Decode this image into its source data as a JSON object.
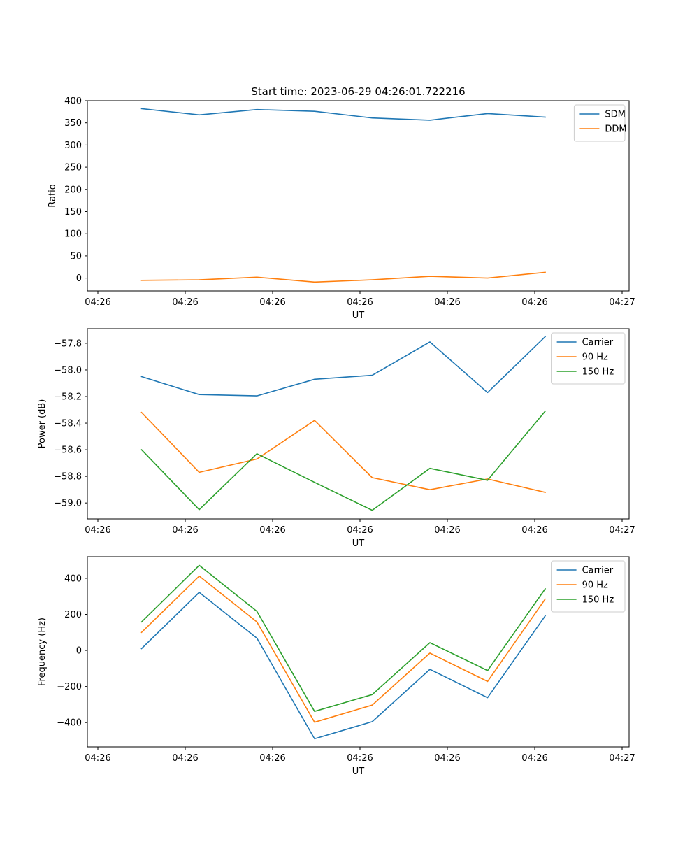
{
  "figure": {
    "title": "Start time: 2023-06-29 04:26:01.722216"
  },
  "chart_data": [
    {
      "type": "line",
      "title": "Start time: 2023-06-29 04:26:01.722216",
      "xlabel": "UT",
      "ylabel": "Ratio",
      "x_tick_labels": [
        "04:26",
        "04:26",
        "04:26",
        "04:26",
        "04:26",
        "04:26",
        "04:27"
      ],
      "x_ticks": [
        0,
        10,
        20,
        30,
        40,
        50,
        60
      ],
      "xlim": [
        -1.2,
        60.8
      ],
      "x": [
        5,
        11.6,
        18.2,
        24.8,
        31.4,
        38,
        44.6,
        51.2
      ],
      "yticks": [
        0,
        50,
        100,
        150,
        200,
        250,
        300,
        350,
        400
      ],
      "ytick_labels": [
        "0",
        "50",
        "100",
        "150",
        "200",
        "250",
        "300",
        "350",
        "400"
      ],
      "ylim": [
        -29,
        400
      ],
      "legend_position": "top-right",
      "series": [
        {
          "name": "SDM",
          "color": "#1f77b4",
          "values": [
            382,
            368,
            380,
            376,
            361,
            356,
            371,
            363
          ]
        },
        {
          "name": "DDM",
          "color": "#ff7f0e",
          "values": [
            -5,
            -4,
            2,
            -9,
            -4,
            4,
            0,
            13
          ]
        }
      ]
    },
    {
      "type": "line",
      "xlabel": "UT",
      "ylabel": "Power (dB)",
      "x_tick_labels": [
        "04:26",
        "04:26",
        "04:26",
        "04:26",
        "04:26",
        "04:26",
        "04:27"
      ],
      "x_ticks": [
        0,
        10,
        20,
        30,
        40,
        50,
        60
      ],
      "xlim": [
        -1.2,
        60.8
      ],
      "x": [
        5,
        11.6,
        18.2,
        24.8,
        31.4,
        38,
        44.6,
        51.2
      ],
      "yticks": [
        -59.0,
        -58.8,
        -58.6,
        -58.4,
        -58.2,
        -58.0,
        -57.8
      ],
      "ytick_labels": [
        "−59.0",
        "−58.8",
        "−58.6",
        "−58.4",
        "−58.2",
        "−58.0",
        "−57.8"
      ],
      "ylim": [
        -59.12,
        -57.69
      ],
      "legend_position": "top-right",
      "series": [
        {
          "name": "Carrier",
          "color": "#1f77b4",
          "values": [
            -58.05,
            -58.185,
            -58.195,
            -58.07,
            -58.04,
            -57.79,
            -58.17,
            -57.75
          ]
        },
        {
          "name": "90 Hz",
          "color": "#ff7f0e",
          "values": [
            -58.32,
            -58.77,
            -58.67,
            -58.38,
            -58.81,
            -58.9,
            -58.82,
            -58.92
          ]
        },
        {
          "name": "150 Hz",
          "color": "#2ca02c",
          "values": [
            -58.6,
            -59.05,
            -58.63,
            -58.845,
            -59.055,
            -58.74,
            -58.83,
            -58.31
          ]
        }
      ]
    },
    {
      "type": "line",
      "xlabel": "UT",
      "ylabel": "Frequency (Hz)",
      "x_tick_labels": [
        "04:26",
        "04:26",
        "04:26",
        "04:26",
        "04:26",
        "04:26",
        "04:27"
      ],
      "x_ticks": [
        0,
        10,
        20,
        30,
        40,
        50,
        60
      ],
      "xlim": [
        -1.2,
        60.8
      ],
      "x": [
        5,
        11.6,
        18.2,
        24.8,
        31.4,
        38,
        44.6,
        51.2
      ],
      "yticks": [
        -400,
        -200,
        0,
        200,
        400
      ],
      "ytick_labels": [
        "−400",
        "−200",
        "0",
        "200",
        "400"
      ],
      "ylim": [
        -535,
        520
      ],
      "legend_position": "top-right",
      "series": [
        {
          "name": "Carrier",
          "color": "#1f77b4",
          "values": [
            10,
            322,
            68,
            -490,
            -395,
            -105,
            -262,
            192
          ]
        },
        {
          "name": "90 Hz",
          "color": "#ff7f0e",
          "values": [
            100,
            412,
            158,
            -398,
            -303,
            -15,
            -172,
            285
          ]
        },
        {
          "name": "150 Hz",
          "color": "#2ca02c",
          "values": [
            158,
            472,
            217,
            -338,
            -245,
            43,
            -112,
            342
          ]
        }
      ]
    }
  ]
}
